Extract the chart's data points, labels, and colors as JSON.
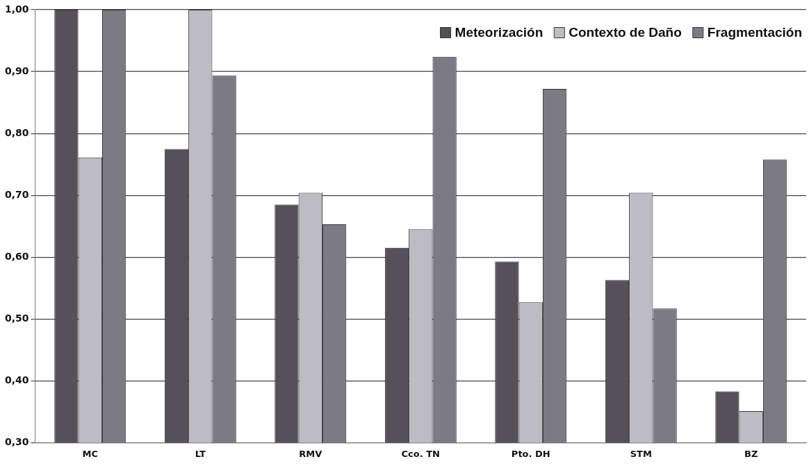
{
  "chart_data": {
    "type": "bar",
    "categories": [
      "MC",
      "LT",
      "RMV",
      "Cco. TN",
      "Pto. DH",
      "STM",
      "BZ"
    ],
    "series": [
      {
        "name": "Meteorización",
        "color": "#55505a",
        "values": [
          1.0,
          0.775,
          0.685,
          0.615,
          0.593,
          0.563,
          0.383
        ]
      },
      {
        "name": "Contexto de Daño",
        "color": "#bdbcc4",
        "values": [
          0.761,
          1.0,
          0.704,
          0.645,
          0.527,
          0.704,
          0.351
        ]
      },
      {
        "name": "Fragmentación",
        "color": "#7c7a84",
        "values": [
          1.0,
          0.894,
          0.653,
          0.924,
          0.872,
          0.517,
          0.758
        ]
      }
    ],
    "ylim": [
      0.3,
      1.0
    ],
    "yticks": [
      {
        "value": 0.3,
        "label": "0,30"
      },
      {
        "value": 0.4,
        "label": "0,40"
      },
      {
        "value": 0.5,
        "label": "0,50"
      },
      {
        "value": 0.6,
        "label": "0,60"
      },
      {
        "value": 0.7,
        "label": "0,70"
      },
      {
        "value": 0.8,
        "label": "0,80"
      },
      {
        "value": 0.9,
        "label": "0,90"
      },
      {
        "value": 1.0,
        "label": "1,00"
      }
    ],
    "grid": "y",
    "legend": "top right"
  }
}
